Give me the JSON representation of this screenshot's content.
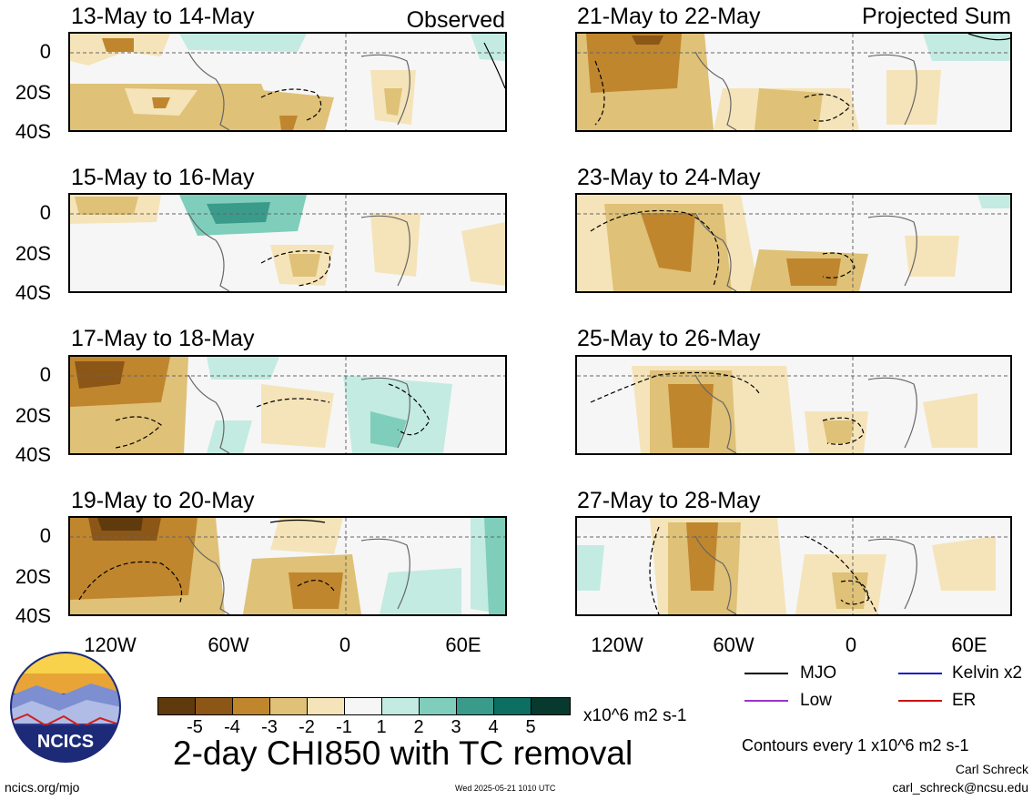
{
  "header": {
    "observed_label": "Observed",
    "projected_label": "Projected Sum"
  },
  "panels": [
    {
      "date": "13-May to 14-May"
    },
    {
      "date": "15-May to 16-May"
    },
    {
      "date": "17-May to 18-May"
    },
    {
      "date": "19-May to 20-May"
    },
    {
      "date": "21-May to 22-May"
    },
    {
      "date": "23-May to 24-May"
    },
    {
      "date": "25-May to 26-May"
    },
    {
      "date": "27-May to 28-May"
    }
  ],
  "axes": {
    "lat_labels": [
      "0",
      "20S",
      "40S"
    ],
    "lon_labels": [
      "120W",
      "60W",
      "0",
      "60E"
    ]
  },
  "colorbar": {
    "colors": [
      "#5e3a0c",
      "#8c5616",
      "#c0862e",
      "#dfc177",
      "#f5e4b9",
      "#f6f6f6",
      "#c3ebe1",
      "#7fcebb",
      "#3a9b8b",
      "#0d6e62",
      "#07392f"
    ],
    "tick_labels": [
      "-5",
      "-4",
      "-3",
      "-2",
      "-1",
      "1",
      "2",
      "3",
      "4",
      "5"
    ],
    "units": "x10^6 m2 s-1"
  },
  "footer": {
    "title": "2-day CHI850 with TC removal",
    "contours_note": "Contours every 1 x10^6 m2 s-1",
    "author": "Carl Schreck",
    "email": "carl_schreck@ncsu.edu",
    "website": "ncics.org/mjo",
    "timestamp": "Wed 2025-05-21 1010 UTC",
    "logo_text": "NCICS"
  },
  "legend": [
    {
      "label": "MJO",
      "color": "#000000"
    },
    {
      "label": "Kelvin x2",
      "color": "#1a1acc"
    },
    {
      "label": "Low",
      "color": "#9933cc"
    },
    {
      "label": "ER",
      "color": "#cc1111"
    }
  ]
}
